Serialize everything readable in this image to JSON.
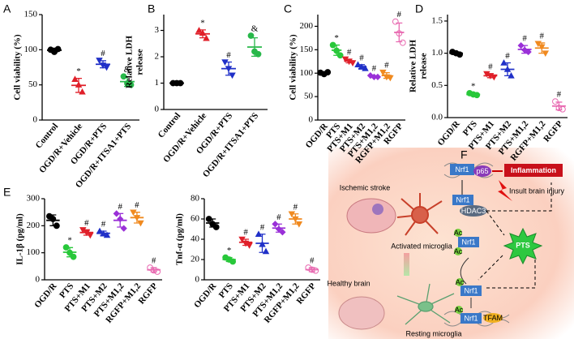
{
  "chart_data": [
    {
      "label": "A",
      "type": "dot",
      "ylabel": [
        "Cell viability (%)"
      ],
      "categories": [
        "Control",
        "OGD/R+Vehicle",
        "OGD/R+PTS",
        "OGD/R+ITSA1+PTS"
      ],
      "colors": [
        "#000000",
        "#e0202a",
        "#2030c8",
        "#28b84a"
      ],
      "markers": [
        "circle",
        "triangle",
        "triangle-down",
        "circle"
      ],
      "values": [
        99.3,
        49.3,
        79.3,
        54.7
      ],
      "errors": [
        3,
        10,
        5,
        7
      ],
      "points": [
        [
          100,
          97,
          101
        ],
        [
          58,
          50,
          40
        ],
        [
          85,
          78,
          75
        ],
        [
          62,
          52,
          50
        ]
      ],
      "annotations": [
        null,
        "*",
        "#",
        "&"
      ],
      "ylim": [
        0,
        150
      ],
      "yticks": [
        0,
        50,
        100,
        150
      ]
    },
    {
      "label": "B",
      "type": "dot",
      "ylabel": [
        "Relative LDH",
        "release"
      ],
      "categories": [
        "Control",
        "OGD/R+Vehicle",
        "OGD/R+PTS",
        "OGD/R+ITSA1+PTS"
      ],
      "colors": [
        "#000000",
        "#e0202a",
        "#2030c8",
        "#28b84a"
      ],
      "markers": [
        "circle",
        "triangle",
        "triangle-down",
        "circle"
      ],
      "values": [
        1,
        2.87,
        1.55,
        2.37
      ],
      "errors": [
        0.02,
        0.15,
        0.25,
        0.35
      ],
      "points": [
        [
          1.0,
          1.0,
          1.0
        ],
        [
          3.0,
          2.9,
          2.7
        ],
        [
          1.8,
          1.55,
          1.3
        ],
        [
          2.8,
          2.2,
          2.1
        ]
      ],
      "annotations": [
        null,
        "*",
        "#",
        "&"
      ],
      "ylim": [
        0,
        3.6
      ],
      "yticks": [
        0,
        1,
        2,
        3
      ]
    },
    {
      "label": "C",
      "type": "dot",
      "ylabel": [
        "Cell viability (%)"
      ],
      "categories": [
        "OGD/R",
        "PTS",
        "PTS+M1",
        "PTS+M2",
        "PTS+M1,2",
        "RGFP+M1,2",
        "RGFP"
      ],
      "colors": [
        "#000000",
        "#28c83a",
        "#e0202a",
        "#2030c8",
        "#9a30d8",
        "#f08a20",
        "#e868b0"
      ],
      "markers": [
        "circle",
        "circle",
        "triangle-down",
        "triangle",
        "diamond",
        "triangle-down",
        "open-circle"
      ],
      "values": [
        100,
        149,
        126,
        114,
        93,
        95,
        187
      ],
      "errors": [
        2,
        11,
        4,
        4,
        2,
        6,
        20
      ],
      "points": [
        [
          101,
          98,
          102
        ],
        [
          160,
          148,
          138
        ],
        [
          130,
          125,
          122
        ],
        [
          118,
          113,
          110
        ],
        [
          95,
          92,
          92
        ],
        [
          102,
          92,
          90
        ],
        [
          210,
          185,
          165
        ]
      ],
      "annotations": [
        null,
        "*",
        "#",
        "#",
        "#",
        "#",
        "#"
      ],
      "ylim": [
        0,
        225
      ],
      "yticks": [
        0,
        50,
        100,
        150,
        200
      ]
    },
    {
      "label": "D",
      "type": "dot",
      "ylabel": [
        "Relative LDH",
        "release"
      ],
      "categories": [
        "OGD/R",
        "PTS",
        "PTS+M1",
        "PTS+M2",
        "PTS+M1,2",
        "RGFP+M1,2",
        "RGFP"
      ],
      "colors": [
        "#000000",
        "#28c83a",
        "#e0202a",
        "#2030c8",
        "#9a30d8",
        "#f08a20",
        "#e868b0"
      ],
      "markers": [
        "circle",
        "circle",
        "triangle-down",
        "triangle",
        "diamond",
        "triangle-down",
        "open-circle"
      ],
      "values": [
        1.0,
        0.36,
        0.65,
        0.75,
        1.06,
        1.08,
        0.18
      ],
      "errors": [
        0.02,
        0.02,
        0.03,
        0.1,
        0.06,
        0.08,
        0.06
      ],
      "points": [
        [
          1.02,
          1.0,
          0.98
        ],
        [
          0.38,
          0.36,
          0.35
        ],
        [
          0.68,
          0.65,
          0.63
        ],
        [
          0.85,
          0.75,
          0.65
        ],
        [
          1.12,
          1.05,
          1.02
        ],
        [
          1.15,
          1.1,
          1.0
        ],
        [
          0.25,
          0.15,
          0.13
        ]
      ],
      "annotations": [
        null,
        "*",
        "#",
        "#",
        "#",
        "#",
        "#"
      ],
      "ylim": [
        0,
        1.6
      ],
      "yticks": [
        {
          "value": 0,
          "label": "0.0"
        },
        0.5,
        {
          "value": 1,
          "label": "1.0"
        },
        1.5
      ]
    },
    {
      "label": "E",
      "type": "dot",
      "ylabel": [
        "IL-1β (pg/ml)"
      ],
      "categories": [
        "OGD/R",
        "PTS",
        "PTS+M1",
        "PTS+M2",
        "PTS+M1,2",
        "RGFP+M1,2",
        "RGFP"
      ],
      "colors": [
        "#000000",
        "#28c83a",
        "#e0202a",
        "#2030c8",
        "#9a30d8",
        "#f08a20",
        "#e868b0"
      ],
      "markers": [
        "circle",
        "circle",
        "triangle-down",
        "triangle",
        "diamond",
        "triangle-down",
        "open-circle"
      ],
      "values": [
        220,
        102,
        175,
        172,
        220,
        230,
        37
      ],
      "errors": [
        20,
        17,
        10,
        8,
        25,
        20,
        8
      ],
      "points": [
        [
          235,
          225,
          200
        ],
        [
          120,
          100,
          85
        ],
        [
          185,
          175,
          165
        ],
        [
          180,
          170,
          165
        ],
        [
          245,
          225,
          190
        ],
        [
          250,
          230,
          210
        ],
        [
          45,
          35,
          30
        ]
      ],
      "annotations": [
        null,
        "*",
        "#",
        "#",
        "#",
        "#",
        "#"
      ],
      "ylim": [
        0,
        300
      ],
      "yticks": [
        0,
        100,
        200,
        300
      ]
    },
    {
      "type": "dot",
      "ylabel": [
        "Tnf-α (pg/ml)"
      ],
      "categories": [
        "OGD/R",
        "PTS",
        "PTS+M1",
        "PTS+M2",
        "PTS+M1,2",
        "RGFP+M1,2",
        "RGFP"
      ],
      "colors": [
        "#000000",
        "#28c83a",
        "#e0202a",
        "#2030c8",
        "#9a30d8",
        "#f08a20",
        "#e868b0"
      ],
      "markers": [
        "circle",
        "circle",
        "triangle-down",
        "triangle",
        "diamond",
        "triangle-down",
        "open-circle"
      ],
      "values": [
        56,
        20,
        37,
        36,
        51,
        60,
        10
      ],
      "errors": [
        4,
        2,
        3,
        9,
        4,
        5,
        2
      ],
      "points": [
        [
          60,
          55,
          52
        ],
        [
          22,
          20,
          18
        ],
        [
          40,
          36,
          34
        ],
        [
          45,
          35,
          28
        ],
        [
          55,
          50,
          47
        ],
        [
          65,
          60,
          55
        ],
        [
          12,
          10,
          9
        ]
      ],
      "annotations": [
        null,
        "*",
        "#",
        "#",
        "#",
        "#",
        "#"
      ],
      "ylim": [
        0,
        80
      ],
      "yticks": [
        0,
        20,
        40,
        60,
        80
      ]
    }
  ],
  "diagram": {
    "label": "F",
    "ischemic": "Ischemic stroke",
    "activated": "Activated microglia",
    "healthy": "Healthy brain",
    "resting": "Resting microglia",
    "nrf1": "Nrf1",
    "p65": "p65",
    "inflammation": "Inflammation",
    "injury": "Insult brain injury",
    "hdac3": "HDAC3",
    "pts": "PTS",
    "ac": "Ac",
    "tfam": "TFAM"
  }
}
